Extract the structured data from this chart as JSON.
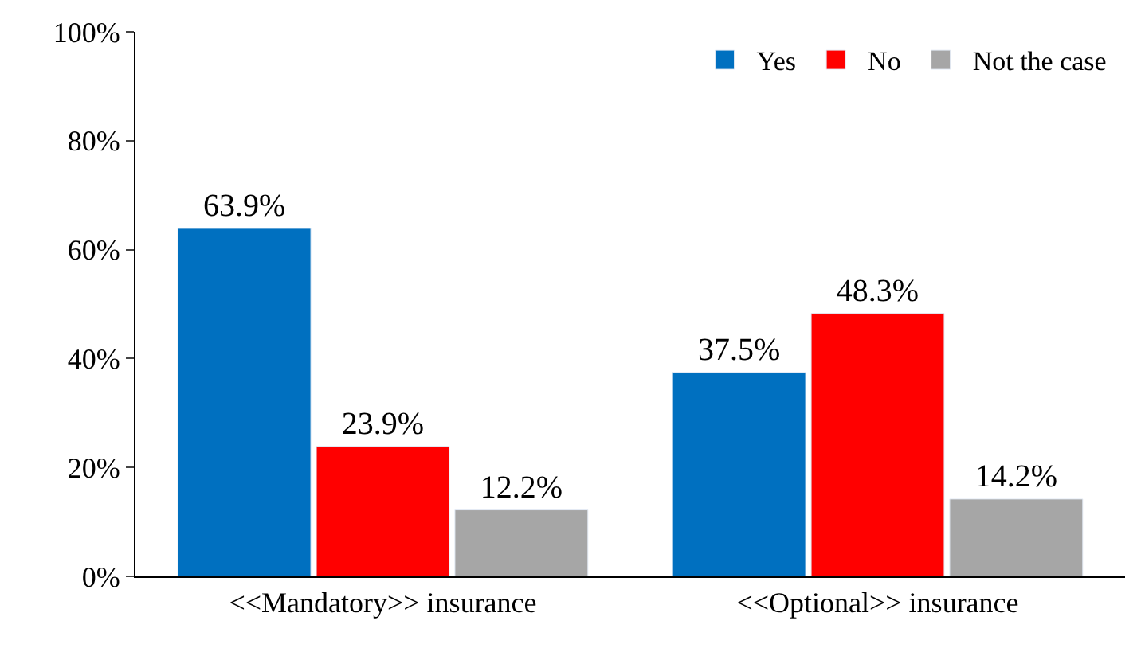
{
  "chart_data": {
    "type": "bar",
    "categories": [
      "<<Mandatory>> insurance",
      "<<Optional>> insurance"
    ],
    "series": [
      {
        "name": "Yes",
        "color": "#0070c0",
        "values": [
          63.9,
          37.5
        ],
        "value_labels": [
          "63.9%",
          "37.5%"
        ]
      },
      {
        "name": "No",
        "color": "#ff0000",
        "values": [
          23.9,
          48.3
        ],
        "value_labels": [
          "23.9%",
          "48.3%"
        ]
      },
      {
        "name": "Not the case",
        "color": "#a6a6a6",
        "values": [
          12.2,
          14.2
        ],
        "value_labels": [
          "12.2%",
          "14.2%"
        ]
      }
    ],
    "ylim": [
      0,
      100
    ],
    "yticks": [
      {
        "value": 0,
        "label": "0%"
      },
      {
        "value": 20,
        "label": "20%"
      },
      {
        "value": 40,
        "label": "40%"
      },
      {
        "value": 60,
        "label": "60%"
      },
      {
        "value": 80,
        "label": "80%"
      },
      {
        "value": 100,
        "label": "100%"
      }
    ],
    "legend": "top right"
  }
}
